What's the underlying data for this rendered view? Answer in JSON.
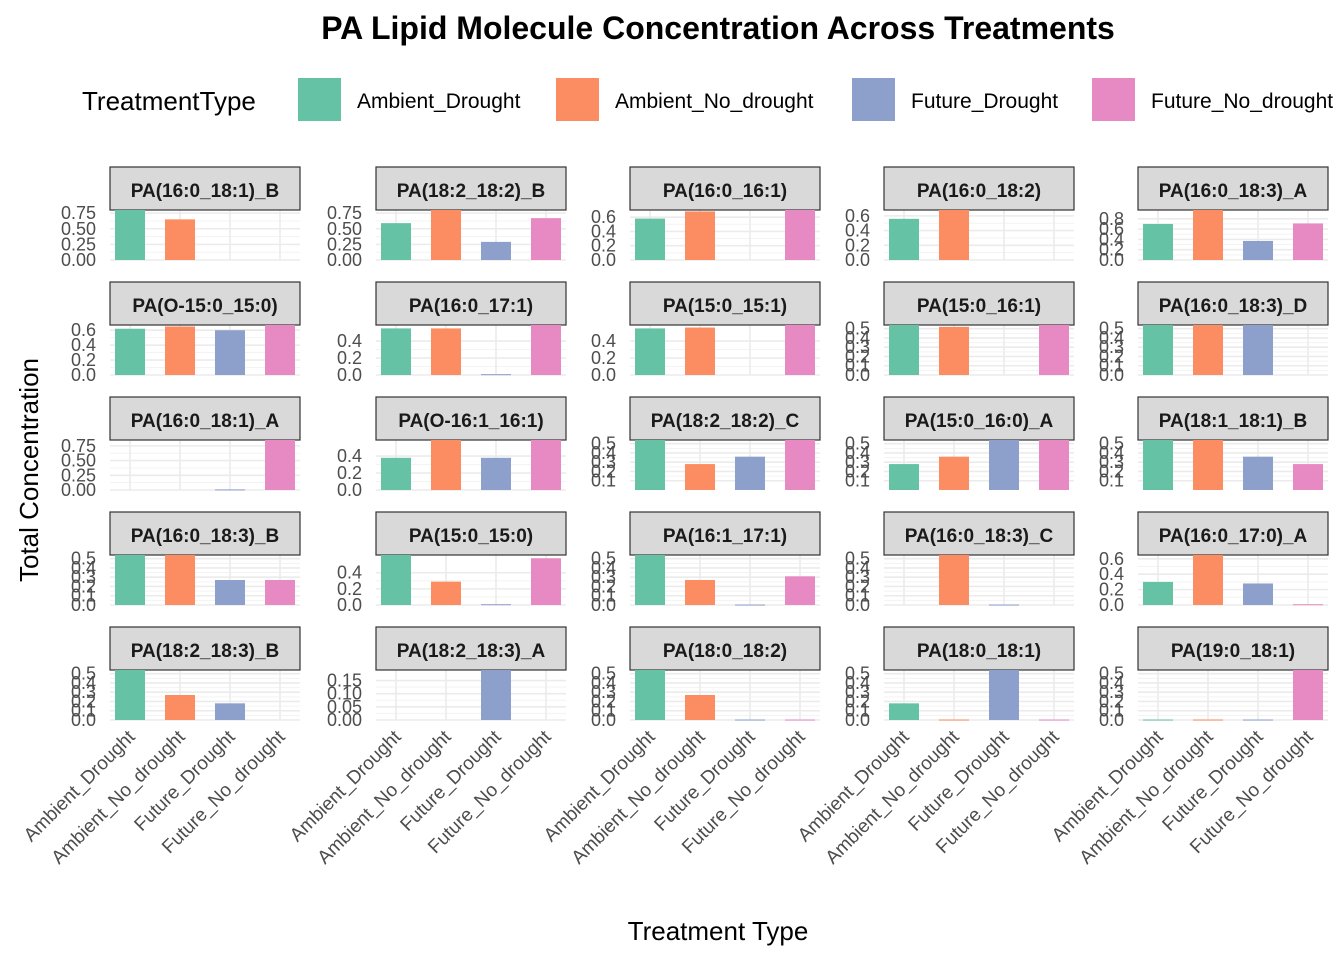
{
  "chart_data": {
    "type": "bar",
    "title": "PA  Lipid Molecule Concentration Across Treatments",
    "xlabel": "Treatment Type",
    "ylabel": "Total Concentration",
    "legend": {
      "title": "TreatmentType",
      "position": "top",
      "items": [
        "Ambient_Drought",
        "Ambient_No_drought",
        "Future_Drought",
        "Future_No_drought"
      ]
    },
    "categories": [
      "Ambient_Drought",
      "Ambient_No_drought",
      "Future_Drought",
      "Future_No_drought"
    ],
    "colors": [
      "#66C2A5",
      "#FC8D62",
      "#8DA0CB",
      "#E78AC3"
    ],
    "grid": true,
    "facet_scales": "free_y",
    "panels": [
      {
        "name": "PA(16:0_18:1)_B",
        "values": [
          0.8,
          0.65,
          0,
          0
        ],
        "ylim": [
          0,
          0.8
        ],
        "yticks": [
          "0.00",
          "0.25",
          "0.50",
          "0.75"
        ],
        "ytick_values": [
          0,
          0.25,
          0.5,
          0.75
        ]
      },
      {
        "name": "PA(18:2_18:2)_B",
        "values": [
          0.59,
          0.8,
          0.29,
          0.67
        ],
        "ylim": [
          0,
          0.8
        ],
        "yticks": [
          "0.00",
          "0.25",
          "0.50",
          "0.75"
        ],
        "ytick_values": [
          0,
          0.25,
          0.5,
          0.75
        ]
      },
      {
        "name": "PA(16:0_16:1)",
        "values": [
          0.58,
          0.68,
          0,
          0.7
        ],
        "ylim": [
          0,
          0.7
        ],
        "yticks": [
          "0.0",
          "0.2",
          "0.4",
          "0.6"
        ],
        "ytick_values": [
          0,
          0.2,
          0.4,
          0.6
        ]
      },
      {
        "name": "PA(16:0_18:2)",
        "values": [
          0.56,
          0.68,
          0,
          0
        ],
        "ylim": [
          0,
          0.68
        ],
        "yticks": [
          "0.0",
          "0.2",
          "0.4",
          "0.6"
        ],
        "ytick_values": [
          0,
          0.2,
          0.4,
          0.6
        ]
      },
      {
        "name": "PA(16:0_18:3)_A",
        "values": [
          0.7,
          0.97,
          0.37,
          0.71
        ],
        "ylim": [
          0,
          0.97
        ],
        "yticks": [
          "0.0",
          "0.2",
          "0.4",
          "0.6",
          "0.8"
        ],
        "ytick_values": [
          0,
          0.2,
          0.4,
          0.6,
          0.8
        ]
      },
      {
        "name": "PA(O-15:0_15:0)",
        "values": [
          0.62,
          0.65,
          0.6,
          0.67
        ],
        "ylim": [
          0,
          0.67
        ],
        "yticks": [
          "0.0",
          "0.2",
          "0.4",
          "0.6"
        ],
        "ytick_values": [
          0,
          0.2,
          0.4,
          0.6
        ]
      },
      {
        "name": "PA(16:0_17:1)",
        "values": [
          0.55,
          0.55,
          0.01,
          0.59
        ],
        "ylim": [
          0,
          0.59
        ],
        "yticks": [
          "0.0",
          "0.2",
          "0.4"
        ],
        "ytick_values": [
          0,
          0.2,
          0.4
        ]
      },
      {
        "name": "PA(15:0_15:1)",
        "values": [
          0.55,
          0.56,
          0,
          0.59
        ],
        "ylim": [
          0,
          0.59
        ],
        "yticks": [
          "0.0",
          "0.2",
          "0.4"
        ],
        "ytick_values": [
          0,
          0.2,
          0.4
        ]
      },
      {
        "name": "PA(15:0_16:1)",
        "values": [
          0.54,
          0.52,
          0,
          0.54
        ],
        "ylim": [
          0,
          0.54
        ],
        "yticks": [
          "0.0",
          "0.1",
          "0.2",
          "0.3",
          "0.4",
          "0.5"
        ],
        "ytick_values": [
          0,
          0.1,
          0.2,
          0.3,
          0.4,
          0.5
        ]
      },
      {
        "name": "PA(16:0_18:3)_D",
        "values": [
          0.54,
          0.54,
          0.54,
          0
        ],
        "ylim": [
          0,
          0.54
        ],
        "yticks": [
          "0.0",
          "0.1",
          "0.2",
          "0.3",
          "0.4",
          "0.5"
        ],
        "ytick_values": [
          0,
          0.1,
          0.2,
          0.3,
          0.4,
          0.5
        ]
      },
      {
        "name": "PA(16:0_18:1)_A",
        "values": [
          0,
          0,
          0.01,
          0.85
        ],
        "ylim": [
          0,
          0.85
        ],
        "yticks": [
          "0.00",
          "0.25",
          "0.50",
          "0.75"
        ],
        "ytick_values": [
          0,
          0.25,
          0.5,
          0.75
        ]
      },
      {
        "name": "PA(O-16:1_16:1)",
        "values": [
          0.38,
          0.59,
          0.38,
          0.59
        ],
        "ylim": [
          0,
          0.59
        ],
        "yticks": [
          "0.0",
          "0.2",
          "0.4"
        ],
        "ytick_values": [
          0,
          0.2,
          0.4
        ]
      },
      {
        "name": "PA(18:2_18:2)_C",
        "values": [
          0.54,
          0.28,
          0.36,
          0.54
        ],
        "ylim": [
          0,
          0.54
        ],
        "yticks": [
          "0.1",
          "0.2",
          "0.3",
          "0.4",
          "0.5"
        ],
        "ytick_values": [
          0.1,
          0.2,
          0.3,
          0.4,
          0.5
        ]
      },
      {
        "name": "PA(15:0_16:0)_A",
        "values": [
          0.28,
          0.36,
          0.54,
          0.54
        ],
        "ylim": [
          0,
          0.54
        ],
        "yticks": [
          "0.1",
          "0.2",
          "0.3",
          "0.4",
          "0.5"
        ],
        "ytick_values": [
          0.1,
          0.2,
          0.3,
          0.4,
          0.5
        ]
      },
      {
        "name": "PA(18:1_18:1)_B",
        "values": [
          0.54,
          0.54,
          0.36,
          0.28
        ],
        "ylim": [
          0,
          0.54
        ],
        "yticks": [
          "0.1",
          "0.2",
          "0.3",
          "0.4",
          "0.5"
        ],
        "ytick_values": [
          0.1,
          0.2,
          0.3,
          0.4,
          0.5
        ]
      },
      {
        "name": "PA(16:0_18:3)_B",
        "values": [
          0.54,
          0.54,
          0.27,
          0.27
        ],
        "ylim": [
          0,
          0.54
        ],
        "yticks": [
          "0.0",
          "0.1",
          "0.2",
          "0.3",
          "0.4",
          "0.5"
        ],
        "ytick_values": [
          0,
          0.1,
          0.2,
          0.3,
          0.4,
          0.5
        ]
      },
      {
        "name": "PA(15:0_15:0)",
        "values": [
          0.62,
          0.29,
          0.01,
          0.58
        ],
        "ylim": [
          0,
          0.62
        ],
        "yticks": [
          "0.0",
          "0.2",
          "0.4"
        ],
        "ytick_values": [
          0,
          0.2,
          0.4
        ]
      },
      {
        "name": "PA(16:1_17:1)",
        "values": [
          0.54,
          0.27,
          0.005,
          0.31
        ],
        "ylim": [
          0,
          0.54
        ],
        "yticks": [
          "0.0",
          "0.1",
          "0.2",
          "0.3",
          "0.4",
          "0.5"
        ],
        "ytick_values": [
          0,
          0.1,
          0.2,
          0.3,
          0.4,
          0.5
        ]
      },
      {
        "name": "PA(16:0_18:3)_C",
        "values": [
          0,
          0.54,
          0.005,
          0
        ],
        "ylim": [
          0,
          0.54
        ],
        "yticks": [
          "0.0",
          "0.1",
          "0.2",
          "0.3",
          "0.4",
          "0.5"
        ],
        "ytick_values": [
          0,
          0.1,
          0.2,
          0.3,
          0.4,
          0.5
        ]
      },
      {
        "name": "PA(16:0_17:0)_A",
        "values": [
          0.3,
          0.65,
          0.28,
          0.01
        ],
        "ylim": [
          0,
          0.65
        ],
        "yticks": [
          "0.0",
          "0.2",
          "0.4",
          "0.6"
        ],
        "ytick_values": [
          0,
          0.2,
          0.4,
          0.6
        ]
      },
      {
        "name": "PA(18:2_18:3)_B",
        "values": [
          0.54,
          0.27,
          0.18,
          0
        ],
        "ylim": [
          0,
          0.54
        ],
        "yticks": [
          "0.0",
          "0.1",
          "0.2",
          "0.3",
          "0.4",
          "0.5"
        ],
        "ytick_values": [
          0,
          0.1,
          0.2,
          0.3,
          0.4,
          0.5
        ]
      },
      {
        "name": "PA(18:2_18:3)_A",
        "values": [
          0,
          0,
          0.19,
          0
        ],
        "ylim": [
          0,
          0.19
        ],
        "yticks": [
          "0.00",
          "0.05",
          "0.10",
          "0.15"
        ],
        "ytick_values": [
          0,
          0.05,
          0.1,
          0.15
        ]
      },
      {
        "name": "PA(18:0_18:2)",
        "values": [
          0.54,
          0.27,
          0.005,
          0.005
        ],
        "ylim": [
          0,
          0.54
        ],
        "yticks": [
          "0.0",
          "0.1",
          "0.2",
          "0.3",
          "0.4",
          "0.5"
        ],
        "ytick_values": [
          0,
          0.1,
          0.2,
          0.3,
          0.4,
          0.5
        ]
      },
      {
        "name": "PA(18:0_18:1)",
        "values": [
          0.18,
          0.005,
          0.54,
          0.005
        ],
        "ylim": [
          0,
          0.54
        ],
        "yticks": [
          "0.0",
          "0.1",
          "0.2",
          "0.3",
          "0.4",
          "0.5"
        ],
        "ytick_values": [
          0,
          0.1,
          0.2,
          0.3,
          0.4,
          0.5
        ]
      },
      {
        "name": "PA(19:0_18:1)",
        "values": [
          0.005,
          0.005,
          0.005,
          0.54
        ],
        "ylim": [
          0,
          0.54
        ],
        "yticks": [
          "0.0",
          "0.1",
          "0.2",
          "0.3",
          "0.4",
          "0.5"
        ],
        "ytick_values": [
          0,
          0.1,
          0.2,
          0.3,
          0.4,
          0.5
        ]
      }
    ]
  }
}
